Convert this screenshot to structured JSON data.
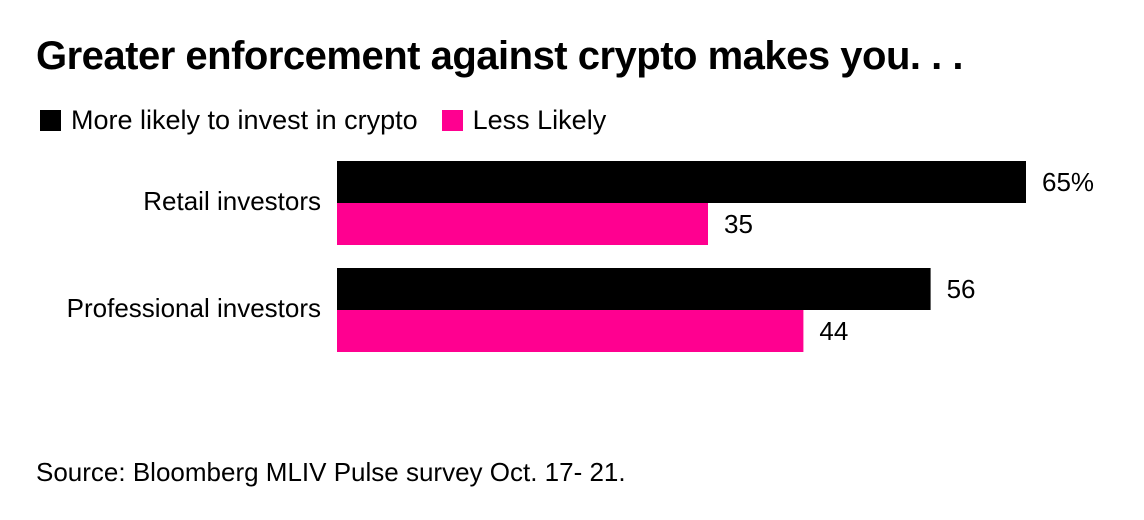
{
  "chart_data": {
    "type": "bar",
    "orientation": "horizontal",
    "title": "Greater enforcement against crypto makes you. . .",
    "categories": [
      "Retail investors",
      "Professional investors"
    ],
    "series": [
      {
        "name": "More likely to invest in crypto",
        "color": "#000000",
        "values": [
          65,
          56
        ],
        "value_labels": [
          "65%",
          "56"
        ]
      },
      {
        "name": "Less Likely",
        "color": "#ff0090",
        "values": [
          35,
          44
        ],
        "value_labels": [
          "35",
          "44"
        ]
      }
    ],
    "xlim": [
      0,
      100
    ],
    "xlabel": "",
    "ylabel": "",
    "grid": false,
    "legend_position": "top-left",
    "source": "Source: Bloomberg MLIV Pulse survey Oct. 17- 21."
  }
}
